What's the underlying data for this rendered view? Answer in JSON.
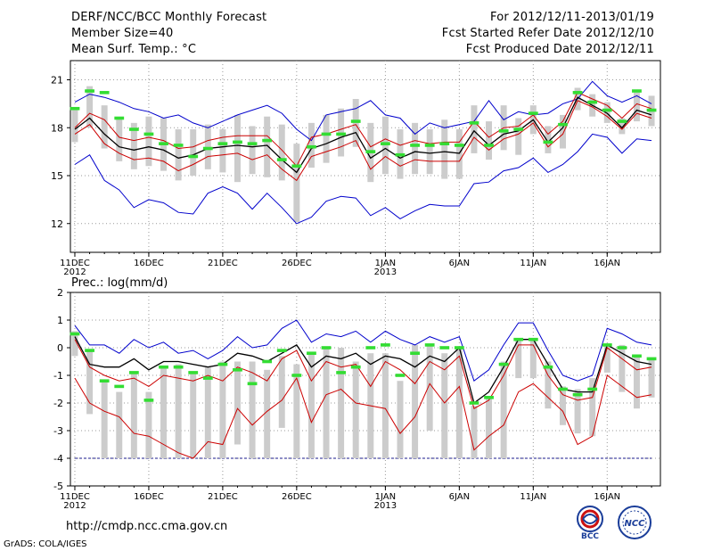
{
  "header": {
    "title": "DERF/NCC/BCC Monthly Forecast",
    "member_size": "Member Size=40",
    "variable": "Mean Surf. Temp.: °C",
    "period": "For 2012/12/11-2013/01/19",
    "refer_date": "Fcst Started Refer Date 2012/12/10",
    "produced_date": "Fcst Produced Date 2012/12/11"
  },
  "footer": {
    "url": "http://cmdp.ncc.cma.gov.cn",
    "grads": "GrADS: COLA/IGES",
    "logo_bcc": "BCC",
    "logo_ncc": "NCC"
  },
  "colors": {
    "blue": "#0000cc",
    "red": "#cc0000",
    "mean": "#000000",
    "bar": "#cccccc",
    "obs": "#33dd33",
    "grid": "#999999",
    "dashed": "#1a1a8c"
  },
  "chart_data": [
    {
      "type": "line",
      "title": "Mean Surf. Temp.: °C",
      "ylim": [
        10.2,
        22.2
      ],
      "yticks": [
        12,
        15,
        18,
        21
      ],
      "xlim": [
        -0.3,
        39.6
      ],
      "x_ticks": [
        {
          "day": 0,
          "label": "11DEC",
          "year": "2012"
        },
        {
          "day": 5,
          "label": "16DEC"
        },
        {
          "day": 10,
          "label": "21DEC"
        },
        {
          "day": 15,
          "label": "26DEC"
        },
        {
          "day": 21,
          "label": "1JAN",
          "year": "2013"
        },
        {
          "day": 26,
          "label": "6JAN"
        },
        {
          "day": 31,
          "label": "11JAN"
        },
        {
          "day": 36,
          "label": "16JAN"
        }
      ],
      "x": [
        0,
        1,
        2,
        3,
        4,
        5,
        6,
        7,
        8,
        9,
        10,
        11,
        12,
        13,
        14,
        15,
        16,
        17,
        18,
        19,
        20,
        21,
        22,
        23,
        24,
        25,
        26,
        27,
        28,
        29,
        30,
        31,
        32,
        33,
        34,
        35,
        36,
        37,
        38,
        39
      ],
      "series": [
        {
          "name": "max",
          "color": "blue",
          "values": [
            19.6,
            20.1,
            19.9,
            19.6,
            19.2,
            19.0,
            18.6,
            18.8,
            18.3,
            18.0,
            18.4,
            18.8,
            19.1,
            19.4,
            18.9,
            17.9,
            17.2,
            18.8,
            19.0,
            19.2,
            19.7,
            18.8,
            18.6,
            17.6,
            18.3,
            18.0,
            18.2,
            18.4,
            19.7,
            18.5,
            19.0,
            18.8,
            18.9,
            19.5,
            19.8,
            20.9,
            20.0,
            19.6,
            20.0,
            19.5
          ]
        },
        {
          "name": "upper",
          "color": "red",
          "values": [
            18.0,
            18.9,
            18.5,
            17.4,
            17.2,
            17.4,
            17.2,
            16.7,
            16.8,
            17.2,
            17.4,
            17.5,
            17.5,
            17.5,
            16.6,
            15.6,
            17.4,
            17.6,
            17.9,
            18.2,
            16.8,
            17.3,
            16.9,
            17.2,
            17.0,
            17.1,
            17.1,
            18.4,
            17.4,
            18.0,
            18.1,
            18.8,
            17.6,
            18.4,
            20.2,
            19.8,
            19.4,
            18.6,
            19.5,
            19.2
          ]
        },
        {
          "name": "mean",
          "color": "mean",
          "values": [
            17.9,
            18.6,
            17.6,
            16.8,
            16.6,
            16.8,
            16.6,
            16.1,
            16.3,
            16.7,
            16.8,
            16.9,
            16.8,
            16.9,
            16.0,
            15.2,
            16.7,
            17.0,
            17.4,
            17.7,
            16.1,
            16.7,
            16.1,
            16.5,
            16.4,
            16.5,
            16.4,
            17.8,
            16.9,
            17.6,
            17.8,
            18.5,
            17.1,
            18.0,
            19.9,
            19.4,
            18.9,
            18.0,
            19.1,
            18.8
          ]
        },
        {
          "name": "lower",
          "color": "red",
          "values": [
            17.6,
            18.2,
            17.0,
            16.4,
            16.0,
            16.1,
            15.9,
            15.3,
            15.7,
            16.2,
            16.3,
            16.4,
            16.0,
            16.3,
            15.4,
            14.7,
            16.2,
            16.5,
            16.8,
            17.2,
            15.4,
            16.2,
            15.6,
            16.0,
            15.9,
            15.9,
            15.9,
            17.4,
            16.6,
            17.3,
            17.6,
            18.3,
            16.8,
            17.6,
            19.7,
            19.3,
            18.7,
            17.9,
            18.9,
            18.6
          ]
        },
        {
          "name": "min",
          "color": "blue",
          "values": [
            15.7,
            16.3,
            14.7,
            14.1,
            13.0,
            13.5,
            13.3,
            12.7,
            12.6,
            13.9,
            14.3,
            13.9,
            12.9,
            13.9,
            13.0,
            12.0,
            12.4,
            13.4,
            13.7,
            13.6,
            12.5,
            13.0,
            12.3,
            12.8,
            13.2,
            13.1,
            13.1,
            14.5,
            14.6,
            15.3,
            15.5,
            16.1,
            15.2,
            15.7,
            16.5,
            17.6,
            17.4,
            16.4,
            17.3,
            17.2
          ]
        }
      ],
      "bars": {
        "low": [
          17.1,
          18.0,
          16.7,
          15.9,
          15.4,
          15.6,
          15.3,
          14.7,
          15.0,
          15.4,
          15.2,
          14.6,
          15.1,
          14.9,
          14.7,
          12.1,
          15.5,
          15.8,
          16.2,
          16.8,
          14.6,
          15.1,
          14.8,
          15.1,
          15.1,
          14.8,
          14.8,
          16.4,
          16.0,
          16.6,
          16.3,
          17.6,
          16.4,
          16.7,
          19.1,
          18.7,
          18.3,
          17.6,
          18.4,
          18.1
        ],
        "high": [
          19.1,
          20.6,
          19.4,
          18.6,
          18.3,
          18.7,
          18.6,
          17.9,
          17.9,
          18.2,
          17.9,
          18.8,
          18.1,
          18.7,
          18.2,
          17.0,
          18.3,
          18.8,
          19.2,
          19.8,
          18.3,
          18.7,
          17.9,
          18.3,
          17.9,
          18.5,
          17.9,
          19.4,
          18.4,
          19.4,
          18.6,
          19.4,
          18.1,
          18.8,
          20.5,
          20.1,
          19.6,
          18.6,
          20.2,
          20.0
        ]
      },
      "observed": [
        19.2,
        20.3,
        20.2,
        18.6,
        17.9,
        17.6,
        17.0,
        16.9,
        16.2,
        16.7,
        17.0,
        17.1,
        17.0,
        17.2,
        16.0,
        15.6,
        16.8,
        17.6,
        17.6,
        18.4,
        16.5,
        17.0,
        16.3,
        16.9,
        16.9,
        17.0,
        16.9,
        18.3,
        16.9,
        17.8,
        17.9,
        18.9,
        17.1,
        18.2,
        20.2,
        19.6,
        19.1,
        18.4,
        20.3,
        19.1
      ]
    },
    {
      "type": "line",
      "title": "Prec.: log(mm/d)",
      "ylim": [
        -5,
        2
      ],
      "yticks": [
        -5,
        -4,
        -3,
        -2,
        -1,
        0,
        1,
        2
      ],
      "xlim": [
        -0.3,
        39.6
      ],
      "x_ticks": [
        {
          "day": 0,
          "label": "11DEC",
          "year": "2012"
        },
        {
          "day": 5,
          "label": "16DEC"
        },
        {
          "day": 10,
          "label": "21DEC"
        },
        {
          "day": 15,
          "label": "26DEC"
        },
        {
          "day": 21,
          "label": "1JAN",
          "year": "2013"
        },
        {
          "day": 26,
          "label": "6JAN"
        },
        {
          "day": 31,
          "label": "11JAN"
        },
        {
          "day": 36,
          "label": "16JAN"
        }
      ],
      "x": [
        0,
        1,
        2,
        3,
        4,
        5,
        6,
        7,
        8,
        9,
        10,
        11,
        12,
        13,
        14,
        15,
        16,
        17,
        18,
        19,
        20,
        21,
        22,
        23,
        24,
        25,
        26,
        27,
        28,
        29,
        30,
        31,
        32,
        33,
        34,
        35,
        36,
        37,
        38,
        39
      ],
      "threshold": -4,
      "series": [
        {
          "name": "max",
          "color": "blue",
          "values": [
            0.8,
            0.1,
            0.1,
            -0.2,
            0.3,
            0.0,
            0.2,
            -0.2,
            -0.1,
            -0.4,
            -0.1,
            0.4,
            0.0,
            0.1,
            0.7,
            1.0,
            0.2,
            0.5,
            0.4,
            0.6,
            0.2,
            0.6,
            0.3,
            0.1,
            0.4,
            0.2,
            0.4,
            -1.2,
            -0.8,
            0.1,
            0.9,
            0.9,
            -0.1,
            -1.0,
            -1.2,
            -1.0,
            0.7,
            0.5,
            0.2,
            0.1
          ]
        },
        {
          "name": "mean",
          "color": "mean",
          "values": [
            0.4,
            -0.6,
            -0.7,
            -0.7,
            -0.4,
            -0.8,
            -0.5,
            -0.5,
            -0.6,
            -0.7,
            -0.6,
            -0.2,
            -0.3,
            -0.5,
            -0.2,
            0.1,
            -0.7,
            -0.3,
            -0.4,
            -0.2,
            -0.6,
            -0.3,
            -0.4,
            -0.7,
            -0.3,
            -0.5,
            0.0,
            -2.0,
            -1.6,
            -0.7,
            0.3,
            0.3,
            -0.6,
            -1.5,
            -1.6,
            -1.6,
            0.1,
            -0.2,
            -0.5,
            -0.6
          ]
        },
        {
          "name": "upper",
          "color": "red",
          "values": [
            0.3,
            -0.7,
            -1.0,
            -1.2,
            -1.1,
            -1.4,
            -1.0,
            -1.1,
            -1.2,
            -1.0,
            -1.2,
            -0.7,
            -0.9,
            -1.2,
            -0.4,
            -0.1,
            -1.2,
            -0.5,
            -0.7,
            -0.6,
            -1.4,
            -0.5,
            -0.8,
            -1.3,
            -0.5,
            -0.8,
            -0.3,
            -2.2,
            -1.9,
            -1.0,
            0.1,
            0.1,
            -1.0,
            -1.7,
            -1.9,
            -1.8,
            0.0,
            -0.4,
            -0.8,
            -0.7
          ]
        },
        {
          "name": "lower",
          "color": "red",
          "values": [
            -1.1,
            -2.0,
            -2.3,
            -2.5,
            -3.1,
            -3.2,
            -3.5,
            -3.8,
            -4.0,
            -3.4,
            -3.5,
            -2.2,
            -2.8,
            -2.3,
            -1.9,
            -1.1,
            -2.7,
            -1.7,
            -1.5,
            -2.0,
            -2.1,
            -2.2,
            -3.1,
            -2.5,
            -1.3,
            -2.0,
            -1.4,
            -3.7,
            -3.2,
            -2.8,
            -1.6,
            -1.3,
            -1.8,
            -2.3,
            -3.5,
            -3.2,
            -1.0,
            -1.4,
            -1.8,
            -1.7
          ]
        }
      ],
      "bars": {
        "low": [
          -0.3,
          -2.4,
          -4.0,
          -4.0,
          -4.0,
          -4.0,
          -4.0,
          -4.0,
          -4.0,
          -4.0,
          -4.0,
          -3.5,
          -4.0,
          -4.0,
          -2.9,
          -4.0,
          -4.0,
          -4.0,
          -4.0,
          -4.0,
          -4.0,
          -4.0,
          -4.0,
          -4.0,
          -3.0,
          -4.0,
          -4.0,
          -4.0,
          -4.0,
          -4.0,
          -1.1,
          -1.1,
          -2.2,
          -2.8,
          -3.1,
          -3.2,
          -0.9,
          -1.6,
          -2.2,
          -1.8
        ],
        "high": [
          0.6,
          -0.1,
          -1.2,
          -1.6,
          -0.9,
          -1.6,
          -0.7,
          -0.6,
          -0.9,
          -0.7,
          -0.5,
          -0.5,
          -0.5,
          -0.8,
          -0.3,
          -0.6,
          -0.2,
          0.0,
          0.0,
          -0.5,
          -0.2,
          -0.2,
          -1.2,
          0.1,
          0.1,
          -0.2,
          0.0,
          -2.1,
          -1.8,
          -0.5,
          0.3,
          0.3,
          -0.5,
          -1.4,
          -1.5,
          -1.1,
          0.1,
          0.1,
          -0.3,
          -0.4
        ]
      },
      "observed": [
        0.5,
        -0.1,
        -1.2,
        -1.4,
        -0.9,
        -1.9,
        -0.7,
        -0.7,
        -0.9,
        -1.1,
        -0.6,
        -0.8,
        -1.3,
        -0.5,
        -0.1,
        -1.0,
        -0.2,
        0.0,
        -0.9,
        -0.7,
        0.0,
        0.1,
        -1.0,
        -0.2,
        0.1,
        0.0,
        0.0,
        -2.0,
        -1.8,
        -0.6,
        0.3,
        0.3,
        -0.7,
        -1.5,
        -1.7,
        -1.5,
        0.1,
        0.0,
        -0.3,
        -0.4
      ]
    }
  ]
}
